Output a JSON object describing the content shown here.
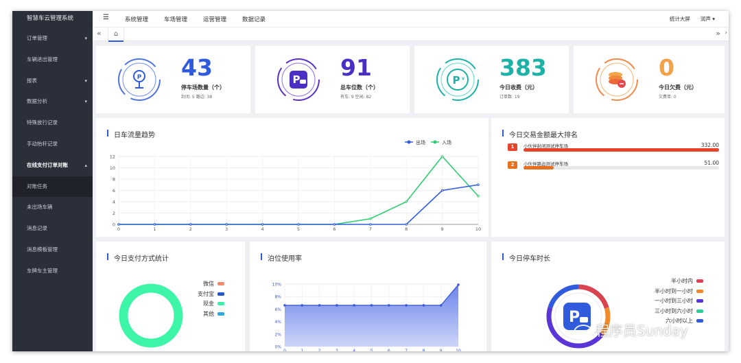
{
  "sidebar": {
    "title": "智慧车云管理系统",
    "items": [
      {
        "label": "订单管理",
        "caret": "▾"
      },
      {
        "label": "车辆进出管理",
        "caret": ""
      },
      {
        "label": "报表",
        "caret": "▾"
      },
      {
        "label": "数据分析",
        "caret": "▾"
      },
      {
        "label": "特殊放行记录",
        "caret": ""
      },
      {
        "label": "手动抬杆记录",
        "caret": ""
      },
      {
        "label": "在线支付订单对账",
        "caret": "▴"
      },
      {
        "label": "对账任务",
        "caret": ""
      },
      {
        "label": "未出场车辆",
        "caret": ""
      },
      {
        "label": "消息记录",
        "caret": ""
      },
      {
        "label": "消息模板管理",
        "caret": ""
      },
      {
        "label": "车牌车主管理",
        "caret": ""
      }
    ]
  },
  "topbar": {
    "menu_icon": "☰",
    "nav": [
      "系统管理",
      "车场管理",
      "运营管理",
      "数据记录"
    ],
    "big_screen": "统计大屏",
    "user": "润声 ▾"
  },
  "tabbar": {
    "left": "«",
    "home": "⌂",
    "right": "»",
    "more": "›"
  },
  "stats": [
    {
      "value": "43",
      "label": "停车场数量（个）",
      "sub": "封闭: 5   路边: 38",
      "color": "#2f5bdc",
      "icon": "parking-location-icon"
    },
    {
      "value": "91",
      "label": "总车位数（个）",
      "sub": "有车: 9   空闲: 82",
      "color": "#4b2fc4",
      "icon": "parking-car-icon"
    },
    {
      "value": "383",
      "label": "今日收费（元）",
      "sub": "订单数: 19",
      "color": "#1db1a8",
      "icon": "parking-yuan-icon"
    },
    {
      "value": "0",
      "label": "今日欠费（元）",
      "sub": "欠费单: 0",
      "color": "#f2a24a",
      "icon": "coins-icon"
    }
  ],
  "flow": {
    "title": "日车流量趋势",
    "legend": [
      {
        "name": "出场",
        "color": "#2f5bdc"
      },
      {
        "name": "入场",
        "color": "#2ecc71"
      }
    ]
  },
  "ranking": {
    "title": "今日交易金额最大排名",
    "rows": [
      {
        "rank": "1",
        "name": "小伙伴封闭测试停车场",
        "value": "332.00",
        "fraction": 1.0,
        "color": "#e6452c"
      },
      {
        "rank": "2",
        "name": "小伙伴路边测试停车场",
        "value": "51.00",
        "fraction": 0.154,
        "color": "#e8701e"
      }
    ]
  },
  "payment": {
    "title": "今日支付方式统计",
    "legend": [
      {
        "name": "微信",
        "color": "#f08a6a"
      },
      {
        "name": "支付宝",
        "color": "#2456c8"
      },
      {
        "name": "现金",
        "color": "#3cf0a8"
      },
      {
        "name": "其他",
        "color": "#2fa8e0"
      }
    ],
    "ring_color": "#3cf5a6"
  },
  "usage": {
    "title": "泊位使用率"
  },
  "duration": {
    "title": "今日停车时长",
    "legend": [
      {
        "name": "半小时内",
        "color": "#d9434f"
      },
      {
        "name": "半小时到一小时",
        "color": "#f08a2c"
      },
      {
        "name": "一小时到三小时",
        "color": "#5b35d6"
      },
      {
        "name": "三小时到六小时",
        "color": "#2ecf98"
      },
      {
        "name": "六小时以上",
        "color": "#2f5bdc"
      }
    ]
  },
  "watermark": "程序员Sunday",
  "chart_data": [
    {
      "type": "line",
      "title": "日车流量趋势",
      "x": [
        0,
        1,
        2,
        3,
        4,
        5,
        6,
        7,
        8,
        9,
        10
      ],
      "series": [
        {
          "name": "出场",
          "values": [
            0,
            0,
            0,
            0,
            0,
            0,
            0,
            0,
            0,
            6,
            7
          ]
        },
        {
          "name": "入场",
          "values": [
            0,
            0,
            0,
            0,
            0,
            0,
            0,
            1,
            4,
            12,
            5
          ]
        }
      ],
      "ylim": [
        0,
        12
      ],
      "yticks": [
        0,
        2,
        4,
        6,
        8,
        10,
        12
      ],
      "grid": true,
      "legend": "top-right"
    },
    {
      "type": "area",
      "title": "泊位使用率",
      "x": [
        0,
        1,
        2,
        3,
        4,
        5,
        6,
        7,
        8,
        9,
        10
      ],
      "values": [
        6.6,
        6.6,
        6.6,
        6.6,
        6.6,
        6.6,
        6.6,
        6.6,
        6.6,
        6.6,
        9.9
      ],
      "ylim": [
        0,
        10
      ],
      "yticks": [
        "0%",
        "2%",
        "4%",
        "6%",
        "8%",
        "10%"
      ],
      "grid": true
    }
  ]
}
